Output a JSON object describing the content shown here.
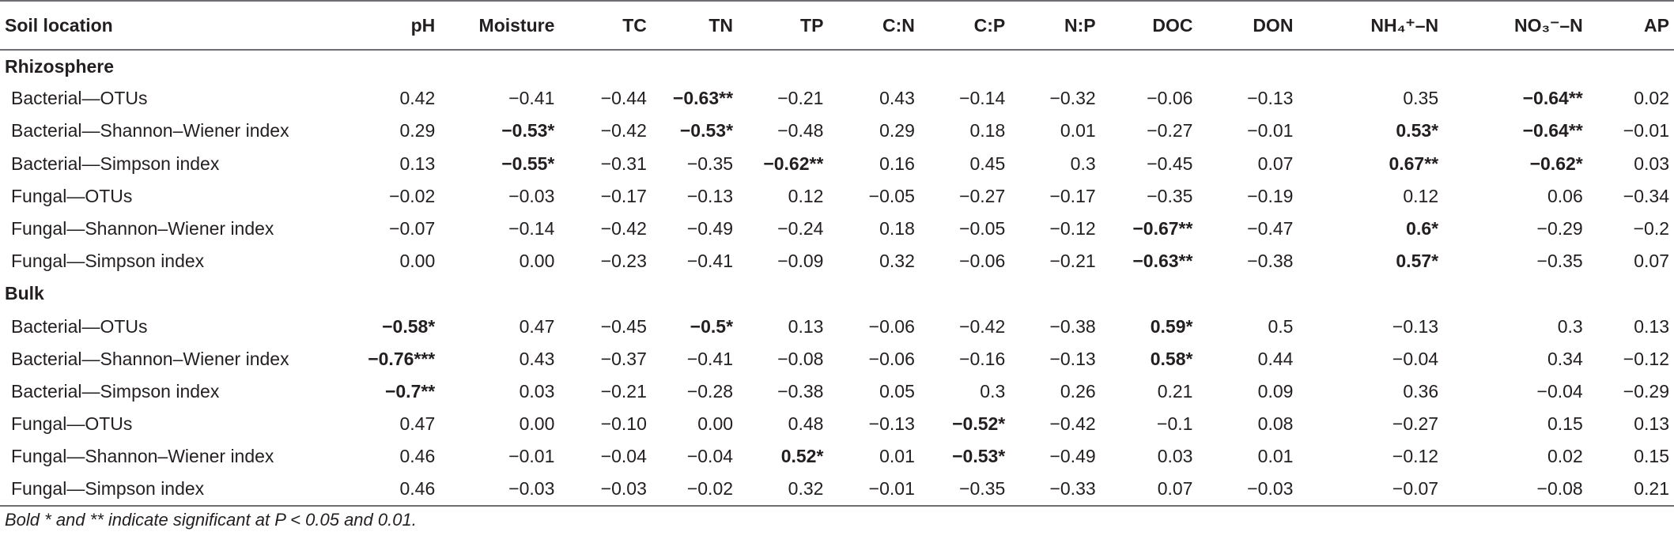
{
  "table": {
    "headers": [
      "Soil location",
      "pH",
      "Moisture",
      "TC",
      "TN",
      "TP",
      "C:N",
      "C:P",
      "N:P",
      "DOC",
      "DON",
      "NH₄⁺–N",
      "NO₃⁻–N",
      "AP"
    ],
    "groups": [
      {
        "label": "Rhizosphere",
        "rows": [
          {
            "label": "Bacterial—OTUs",
            "cells": [
              {
                "v": "0.42",
                "b": false
              },
              {
                "v": "−0.41",
                "b": false
              },
              {
                "v": "−0.44",
                "b": false
              },
              {
                "v": "−0.63**",
                "b": true
              },
              {
                "v": "−0.21",
                "b": false
              },
              {
                "v": "0.43",
                "b": false
              },
              {
                "v": "−0.14",
                "b": false
              },
              {
                "v": "−0.32",
                "b": false
              },
              {
                "v": "−0.06",
                "b": false
              },
              {
                "v": "−0.13",
                "b": false
              },
              {
                "v": "0.35",
                "b": false
              },
              {
                "v": "−0.64**",
                "b": true
              },
              {
                "v": "0.02",
                "b": false
              }
            ]
          },
          {
            "label": "Bacterial—Shannon–Wiener index",
            "cells": [
              {
                "v": "0.29",
                "b": false
              },
              {
                "v": "−0.53*",
                "b": true
              },
              {
                "v": "−0.42",
                "b": false
              },
              {
                "v": "−0.53*",
                "b": true
              },
              {
                "v": "−0.48",
                "b": false
              },
              {
                "v": "0.29",
                "b": false
              },
              {
                "v": "0.18",
                "b": false
              },
              {
                "v": "0.01",
                "b": false
              },
              {
                "v": "−0.27",
                "b": false
              },
              {
                "v": "−0.01",
                "b": false
              },
              {
                "v": "0.53*",
                "b": true
              },
              {
                "v": "−0.64**",
                "b": true
              },
              {
                "v": "−0.01",
                "b": false
              }
            ]
          },
          {
            "label": "Bacterial—Simpson index",
            "cells": [
              {
                "v": "0.13",
                "b": false
              },
              {
                "v": "−0.55*",
                "b": true
              },
              {
                "v": "−0.31",
                "b": false
              },
              {
                "v": "−0.35",
                "b": false
              },
              {
                "v": "−0.62**",
                "b": true
              },
              {
                "v": "0.16",
                "b": false
              },
              {
                "v": "0.45",
                "b": false
              },
              {
                "v": "0.3",
                "b": false
              },
              {
                "v": "−0.45",
                "b": false
              },
              {
                "v": "0.07",
                "b": false
              },
              {
                "v": "0.67**",
                "b": true
              },
              {
                "v": "−0.62*",
                "b": true
              },
              {
                "v": "0.03",
                "b": false
              }
            ]
          },
          {
            "label": "Fungal—OTUs",
            "cells": [
              {
                "v": "−0.02",
                "b": false
              },
              {
                "v": "−0.03",
                "b": false
              },
              {
                "v": "−0.17",
                "b": false
              },
              {
                "v": "−0.13",
                "b": false
              },
              {
                "v": "0.12",
                "b": false
              },
              {
                "v": "−0.05",
                "b": false
              },
              {
                "v": "−0.27",
                "b": false
              },
              {
                "v": "−0.17",
                "b": false
              },
              {
                "v": "−0.35",
                "b": false
              },
              {
                "v": "−0.19",
                "b": false
              },
              {
                "v": "0.12",
                "b": false
              },
              {
                "v": "0.06",
                "b": false
              },
              {
                "v": "−0.34",
                "b": false
              }
            ]
          },
          {
            "label": "Fungal—Shannon–Wiener index",
            "cells": [
              {
                "v": "−0.07",
                "b": false
              },
              {
                "v": "−0.14",
                "b": false
              },
              {
                "v": "−0.42",
                "b": false
              },
              {
                "v": "−0.49",
                "b": false
              },
              {
                "v": "−0.24",
                "b": false
              },
              {
                "v": "0.18",
                "b": false
              },
              {
                "v": "−0.05",
                "b": false
              },
              {
                "v": "−0.12",
                "b": false
              },
              {
                "v": "−0.67**",
                "b": true
              },
              {
                "v": "−0.47",
                "b": false
              },
              {
                "v": "0.6*",
                "b": true
              },
              {
                "v": "−0.29",
                "b": false
              },
              {
                "v": "−0.2",
                "b": false
              }
            ]
          },
          {
            "label": "Fungal—Simpson index",
            "cells": [
              {
                "v": "0.00",
                "b": false
              },
              {
                "v": "0.00",
                "b": false
              },
              {
                "v": "−0.23",
                "b": false
              },
              {
                "v": "−0.41",
                "b": false
              },
              {
                "v": "−0.09",
                "b": false
              },
              {
                "v": "0.32",
                "b": false
              },
              {
                "v": "−0.06",
                "b": false
              },
              {
                "v": "−0.21",
                "b": false
              },
              {
                "v": "−0.63**",
                "b": true
              },
              {
                "v": "−0.38",
                "b": false
              },
              {
                "v": "0.57*",
                "b": true
              },
              {
                "v": "−0.35",
                "b": false
              },
              {
                "v": "0.07",
                "b": false
              }
            ]
          }
        ]
      },
      {
        "label": "Bulk",
        "rows": [
          {
            "label": "Bacterial—OTUs",
            "cells": [
              {
                "v": "−0.58*",
                "b": true
              },
              {
                "v": "0.47",
                "b": false
              },
              {
                "v": "−0.45",
                "b": false
              },
              {
                "v": "−0.5*",
                "b": true
              },
              {
                "v": "0.13",
                "b": false
              },
              {
                "v": "−0.06",
                "b": false
              },
              {
                "v": "−0.42",
                "b": false
              },
              {
                "v": "−0.38",
                "b": false
              },
              {
                "v": "0.59*",
                "b": true
              },
              {
                "v": "0.5",
                "b": false
              },
              {
                "v": "−0.13",
                "b": false
              },
              {
                "v": "0.3",
                "b": false
              },
              {
                "v": "0.13",
                "b": false
              }
            ]
          },
          {
            "label": "Bacterial—Shannon–Wiener index",
            "cells": [
              {
                "v": "−0.76***",
                "b": true
              },
              {
                "v": "0.43",
                "b": false
              },
              {
                "v": "−0.37",
                "b": false
              },
              {
                "v": "−0.41",
                "b": false
              },
              {
                "v": "−0.08",
                "b": false
              },
              {
                "v": "−0.06",
                "b": false
              },
              {
                "v": "−0.16",
                "b": false
              },
              {
                "v": "−0.13",
                "b": false
              },
              {
                "v": "0.58*",
                "b": true
              },
              {
                "v": "0.44",
                "b": false
              },
              {
                "v": "−0.04",
                "b": false
              },
              {
                "v": "0.34",
                "b": false
              },
              {
                "v": "−0.12",
                "b": false
              }
            ]
          },
          {
            "label": "Bacterial—Simpson index",
            "cells": [
              {
                "v": "−0.7**",
                "b": true
              },
              {
                "v": "0.03",
                "b": false
              },
              {
                "v": "−0.21",
                "b": false
              },
              {
                "v": "−0.28",
                "b": false
              },
              {
                "v": "−0.38",
                "b": false
              },
              {
                "v": "0.05",
                "b": false
              },
              {
                "v": "0.3",
                "b": false
              },
              {
                "v": "0.26",
                "b": false
              },
              {
                "v": "0.21",
                "b": false
              },
              {
                "v": "0.09",
                "b": false
              },
              {
                "v": "0.36",
                "b": false
              },
              {
                "v": "−0.04",
                "b": false
              },
              {
                "v": "−0.29",
                "b": false
              }
            ]
          },
          {
            "label": "Fungal—OTUs",
            "cells": [
              {
                "v": "0.47",
                "b": false
              },
              {
                "v": "0.00",
                "b": false
              },
              {
                "v": "−0.10",
                "b": false
              },
              {
                "v": "0.00",
                "b": false
              },
              {
                "v": "0.48",
                "b": false
              },
              {
                "v": "−0.13",
                "b": false
              },
              {
                "v": "−0.52*",
                "b": true
              },
              {
                "v": "−0.42",
                "b": false
              },
              {
                "v": "−0.1",
                "b": false
              },
              {
                "v": "0.08",
                "b": false
              },
              {
                "v": "−0.27",
                "b": false
              },
              {
                "v": "0.15",
                "b": false
              },
              {
                "v": "0.13",
                "b": false
              }
            ]
          },
          {
            "label": "Fungal—Shannon–Wiener index",
            "cells": [
              {
                "v": "0.46",
                "b": false
              },
              {
                "v": "−0.01",
                "b": false
              },
              {
                "v": "−0.04",
                "b": false
              },
              {
                "v": "−0.04",
                "b": false
              },
              {
                "v": "0.52*",
                "b": true
              },
              {
                "v": "0.01",
                "b": false
              },
              {
                "v": "−0.53*",
                "b": true
              },
              {
                "v": "−0.49",
                "b": false
              },
              {
                "v": "0.03",
                "b": false
              },
              {
                "v": "0.01",
                "b": false
              },
              {
                "v": "−0.12",
                "b": false
              },
              {
                "v": "0.02",
                "b": false
              },
              {
                "v": "0.15",
                "b": false
              }
            ]
          },
          {
            "label": "Fungal—Simpson index",
            "cells": [
              {
                "v": "0.46",
                "b": false
              },
              {
                "v": "−0.03",
                "b": false
              },
              {
                "v": "−0.03",
                "b": false
              },
              {
                "v": "−0.02",
                "b": false
              },
              {
                "v": "0.32",
                "b": false
              },
              {
                "v": "−0.01",
                "b": false
              },
              {
                "v": "−0.35",
                "b": false
              },
              {
                "v": "−0.33",
                "b": false
              },
              {
                "v": "0.07",
                "b": false
              },
              {
                "v": "−0.03",
                "b": false
              },
              {
                "v": "−0.07",
                "b": false
              },
              {
                "v": "−0.08",
                "b": false
              },
              {
                "v": "0.21",
                "b": false
              }
            ]
          }
        ]
      }
    ]
  },
  "footnote": "Bold * and ** indicate significant at P < 0.05 and 0.01."
}
